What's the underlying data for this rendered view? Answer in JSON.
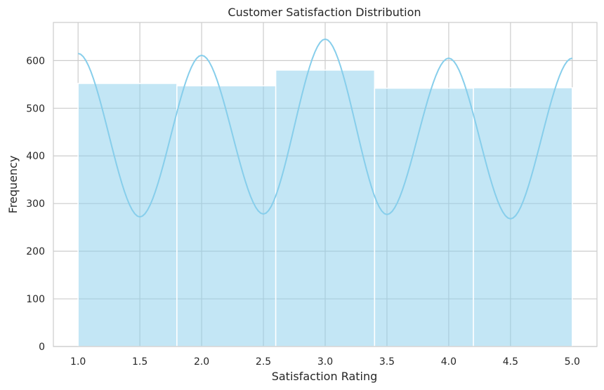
{
  "chart_data": {
    "type": "bar",
    "title": "Customer Satisfaction Distribution",
    "xlabel": "Satisfaction Rating",
    "ylabel": "Frequency",
    "xlim": [
      0.8,
      5.2
    ],
    "ylim": [
      0,
      680
    ],
    "grid": true,
    "xticks": [
      "1.0",
      "1.5",
      "2.0",
      "2.5",
      "3.0",
      "3.5",
      "4.0",
      "4.5",
      "5.0"
    ],
    "xtick_values": [
      1.0,
      1.5,
      2.0,
      2.5,
      3.0,
      3.5,
      4.0,
      4.5,
      5.0
    ],
    "yticks": [
      "0",
      "100",
      "200",
      "300",
      "400",
      "500",
      "600"
    ],
    "ytick_values": [
      0,
      100,
      200,
      300,
      400,
      500,
      600
    ],
    "bins": [
      {
        "start": 1.0,
        "end": 1.8,
        "value": 552
      },
      {
        "start": 1.8,
        "end": 2.6,
        "value": 547
      },
      {
        "start": 2.6,
        "end": 3.4,
        "value": 580
      },
      {
        "start": 3.4,
        "end": 4.2,
        "value": 542
      },
      {
        "start": 4.2,
        "end": 5.0,
        "value": 543
      }
    ],
    "kde_curve": {
      "x": [
        1.0,
        1.5,
        2.0,
        2.5,
        3.0,
        3.5,
        4.0,
        4.5,
        5.0
      ],
      "y": [
        615,
        272,
        611,
        278,
        645,
        277,
        605,
        268,
        605
      ]
    },
    "colors": {
      "bar_fill": "#87ceeb",
      "kde_line": "#87ceeb",
      "grid": "#cccccc"
    }
  }
}
